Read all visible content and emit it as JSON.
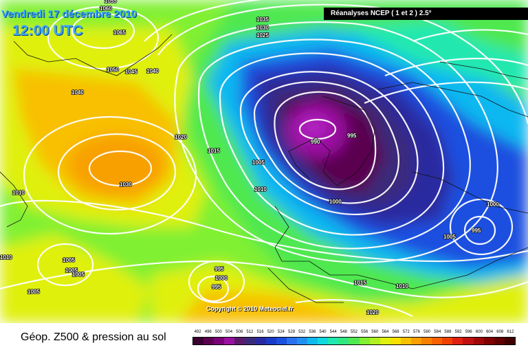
{
  "header": {
    "date": "Vendredi 17 décembre 2010",
    "time": "12:00 UTC",
    "source": "Réanalyses NCEP ( 1 et 2 ) 2.5°"
  },
  "copyright": "Copyright © 2010 Meteociel.fr",
  "footer": {
    "field_title": "Géop. Z500 & pression au sol"
  },
  "scale": {
    "labels": [
      "492",
      "496",
      "500",
      "504",
      "508",
      "512",
      "516",
      "520",
      "524",
      "528",
      "532",
      "536",
      "540",
      "544",
      "548",
      "552",
      "556",
      "560",
      "564",
      "568",
      "572",
      "576",
      "580",
      "584",
      "588",
      "592",
      "596",
      "600",
      "604",
      "608",
      "612"
    ],
    "colors": [
      "#3a0030",
      "#5a0050",
      "#7a0078",
      "#9a10a0",
      "#5a1a6a",
      "#3a2a7a",
      "#2a2aa0",
      "#1a3ac8",
      "#1a50e0",
      "#2a70f0",
      "#2090f0",
      "#10b8f0",
      "#10d8e0",
      "#20e8b0",
      "#30e880",
      "#50e850",
      "#80f030",
      "#b0f020",
      "#e0f010",
      "#f8e000",
      "#f8c000",
      "#f8a000",
      "#f88000",
      "#f86000",
      "#f04000",
      "#e02010",
      "#c01010",
      "#a00808",
      "#800000",
      "#600000",
      "#400000"
    ]
  },
  "pressure_labels": [
    "1065",
    "1060",
    "1055",
    "1050",
    "1045",
    "1040",
    "1040",
    "1035",
    "1030",
    "1025",
    "1020",
    "1015",
    "1010",
    "1010",
    "1005",
    "1000",
    "995",
    "990",
    "995",
    "1000",
    "1005",
    "1010",
    "1010",
    "1015",
    "1005",
    "1005",
    "1005",
    "1000",
    "995",
    "1000",
    "995",
    "1005",
    "1030",
    "1020",
    "1015",
    "1020"
  ],
  "legend_colors": {
    "low_center": "#7a0078",
    "high_center": "#f8b800"
  }
}
